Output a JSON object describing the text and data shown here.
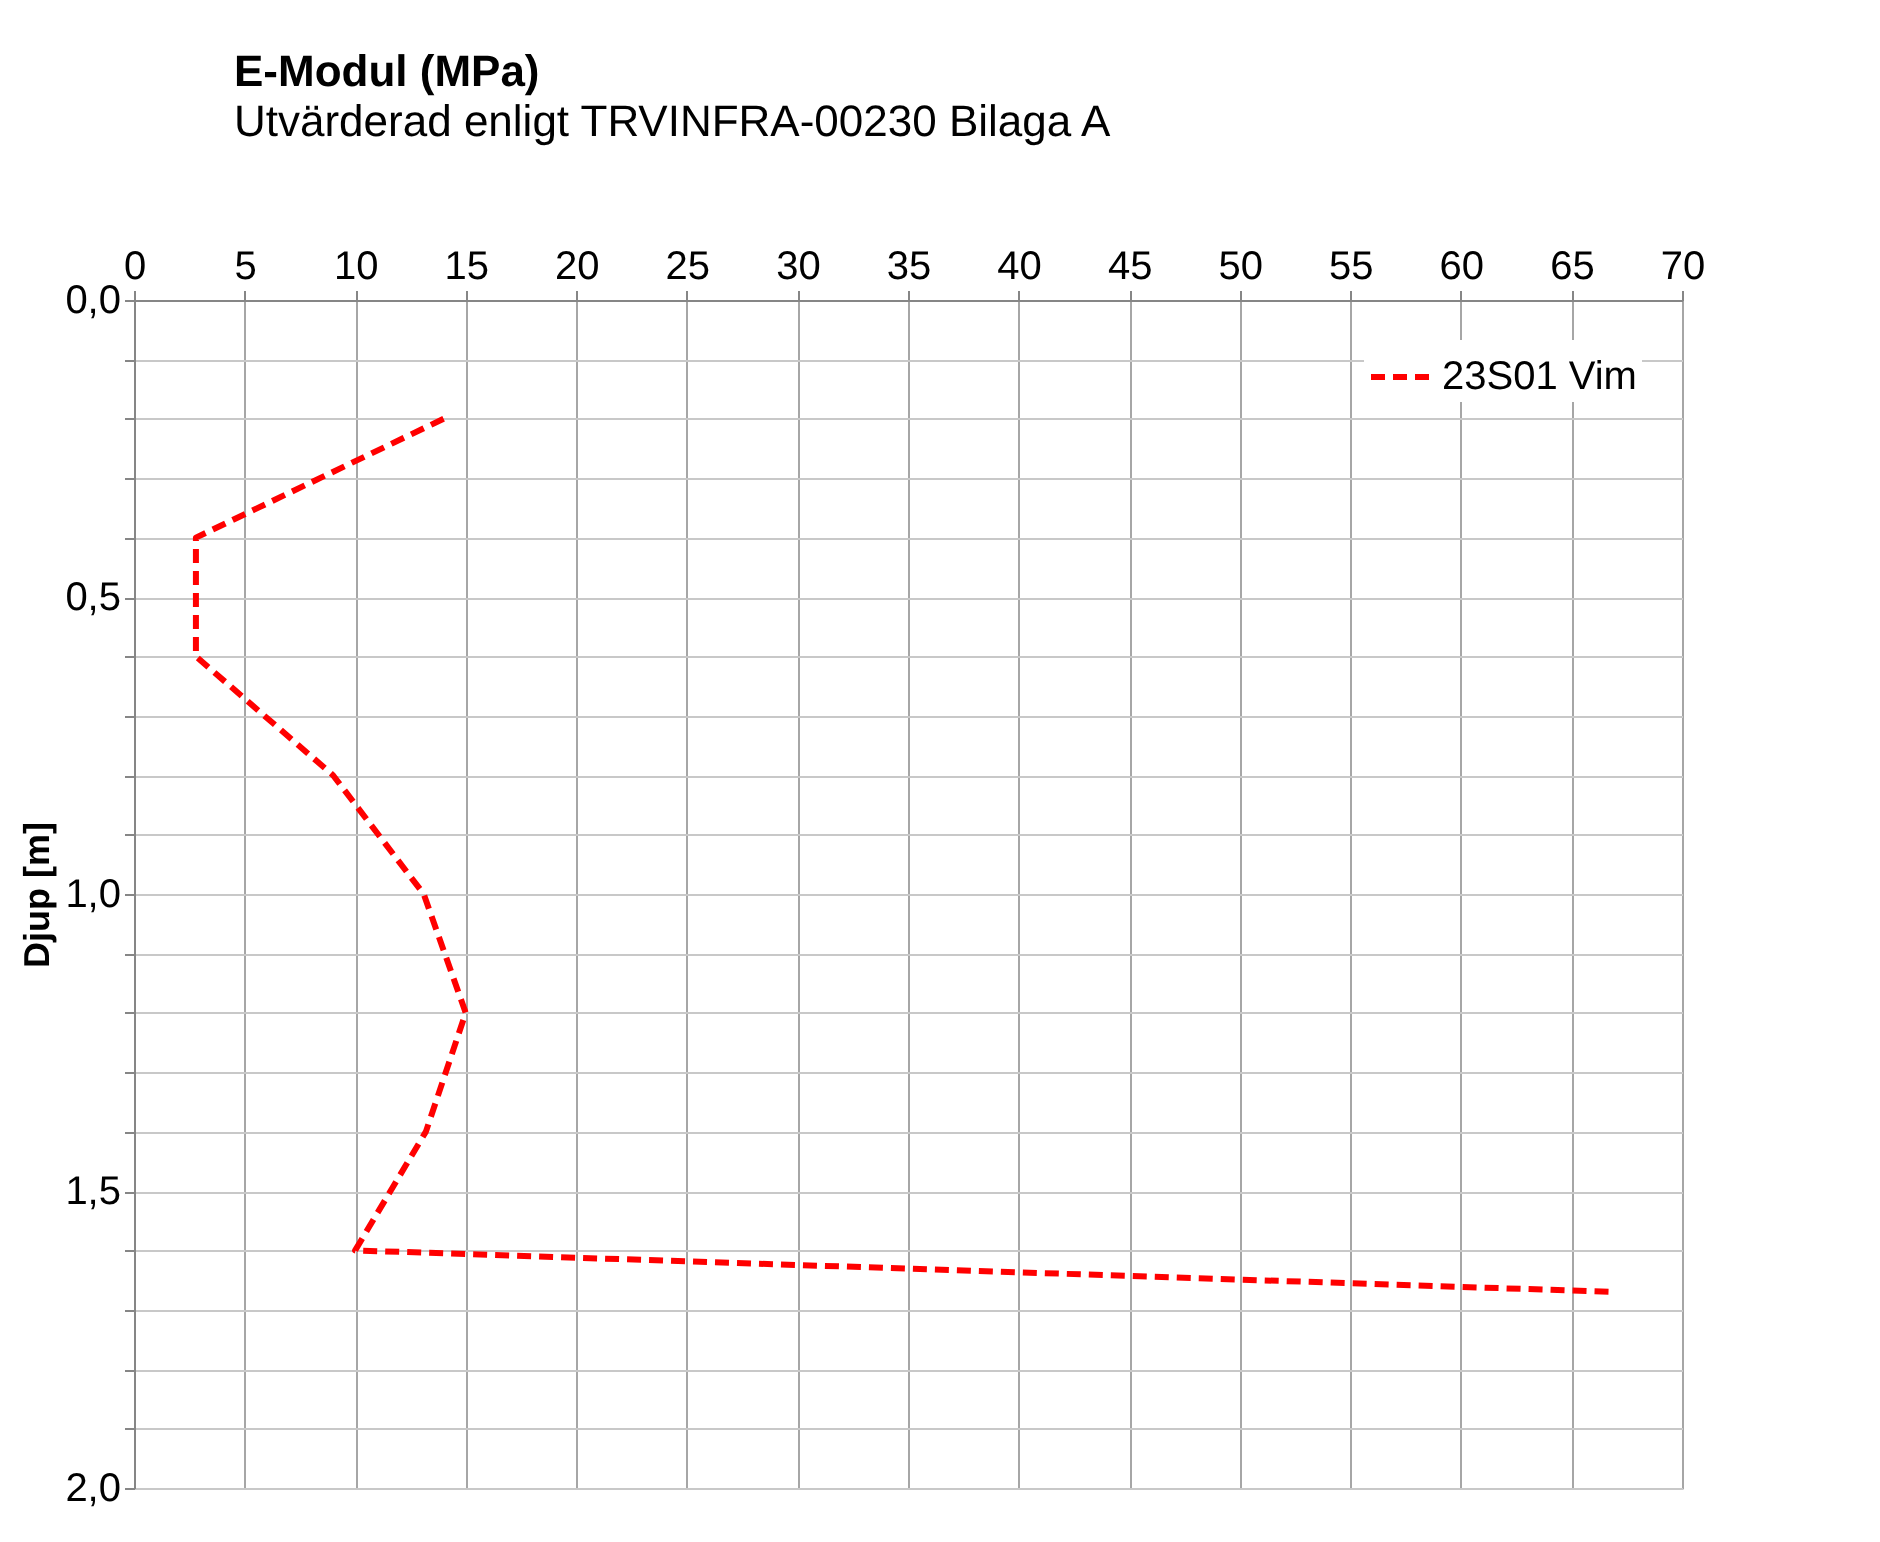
{
  "chart_data": {
    "type": "line",
    "title": "E-Modul (MPa)",
    "subtitle": "Utvärderad enligt TRVINFRA-00230 Bilaga A",
    "ylabel": "Djup [m]",
    "x": [
      14,
      2.8,
      2.8,
      9,
      13.1,
      15,
      13.2,
      10,
      67
    ],
    "series": [
      {
        "name": "23S01 Vim",
        "color": "#ff0000",
        "values": [
          0.2,
          0.4,
          0.6,
          0.8,
          1.0,
          1.2,
          1.4,
          1.6,
          1.67
        ]
      }
    ],
    "xlim": [
      0,
      70
    ],
    "xticks": [
      0,
      5,
      10,
      15,
      20,
      25,
      30,
      35,
      40,
      45,
      50,
      55,
      60,
      65,
      70
    ],
    "ylim": [
      2.0,
      0.0
    ],
    "yticks": [
      {
        "value": 0.0,
        "label": "0,0"
      },
      {
        "value": 0.1,
        "label": null
      },
      {
        "value": 0.2,
        "label": null
      },
      {
        "value": 0.3,
        "label": null
      },
      {
        "value": 0.4,
        "label": null
      },
      {
        "value": 0.5,
        "label": "0,5"
      },
      {
        "value": 0.6,
        "label": null
      },
      {
        "value": 0.7,
        "label": null
      },
      {
        "value": 0.8,
        "label": null
      },
      {
        "value": 0.9,
        "label": null
      },
      {
        "value": 1.0,
        "label": "1,0"
      },
      {
        "value": 1.1,
        "label": null
      },
      {
        "value": 1.2,
        "label": null
      },
      {
        "value": 1.3,
        "label": null
      },
      {
        "value": 1.4,
        "label": null
      },
      {
        "value": 1.5,
        "label": "1,5"
      },
      {
        "value": 1.6,
        "label": null
      },
      {
        "value": 1.7,
        "label": null
      },
      {
        "value": 1.8,
        "label": null
      },
      {
        "value": 1.9,
        "label": null
      },
      {
        "value": 2.0,
        "label": "2,0"
      }
    ],
    "grid": true,
    "legend": "top right",
    "line_style": "dashed",
    "marker": "none"
  }
}
